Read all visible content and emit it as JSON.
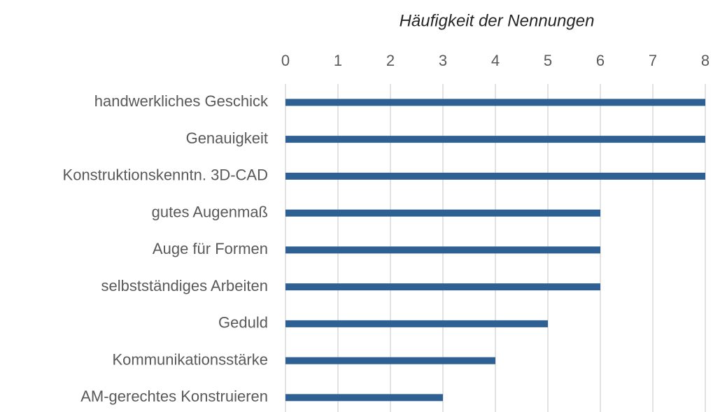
{
  "chart_data": {
    "type": "bar",
    "orientation": "horizontal",
    "title": "Häufigkeit der Nennungen",
    "categories": [
      "handwerkliches Geschick",
      "Genauigkeit",
      "Konstruktionskenntn. 3D-CAD",
      "gutes Augenmaß",
      "Auge für Formen",
      "selbstständiges Arbeiten",
      "Geduld",
      "Kommunikationsstärke",
      "AM-gerechtes Konstruieren"
    ],
    "values": [
      8,
      8,
      8,
      6,
      6,
      6,
      5,
      4,
      3
    ],
    "color": "#2e6093",
    "xlim": [
      0,
      8
    ],
    "xticks": [
      0,
      1,
      2,
      3,
      4,
      5,
      6,
      7,
      8
    ],
    "grid": true
  }
}
